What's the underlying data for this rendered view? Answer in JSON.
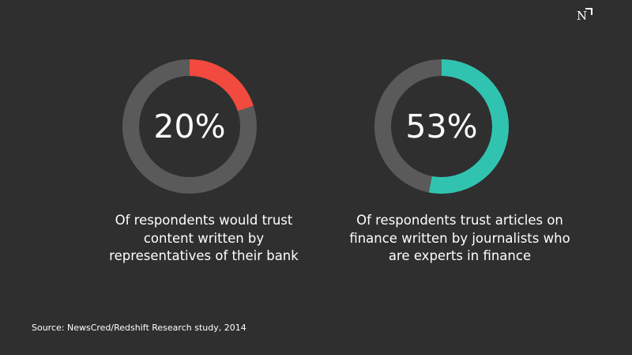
{
  "logo": {
    "letter": "N"
  },
  "chart_data": [
    {
      "type": "pie",
      "variant": "donut",
      "value_percent": 20,
      "value_label": "20%",
      "caption_lines": [
        "Of respondents would trust",
        "content written by",
        "representatives of their bank"
      ],
      "colors": {
        "highlight": "#f24a3f",
        "remainder": "#5a5a5a"
      }
    },
    {
      "type": "pie",
      "variant": "donut",
      "value_percent": 53,
      "value_label": "53%",
      "caption_lines": [
        "Of respondents trust articles on",
        "finance written by journalists who",
        "are experts in finance"
      ],
      "colors": {
        "highlight": "#30c4b0",
        "remainder": "#5a5a5a"
      }
    }
  ],
  "source": "Source: NewsCred/Redshift Research study, 2014",
  "colors": {
    "background": "#2f2f2f",
    "text": "#ffffff"
  }
}
